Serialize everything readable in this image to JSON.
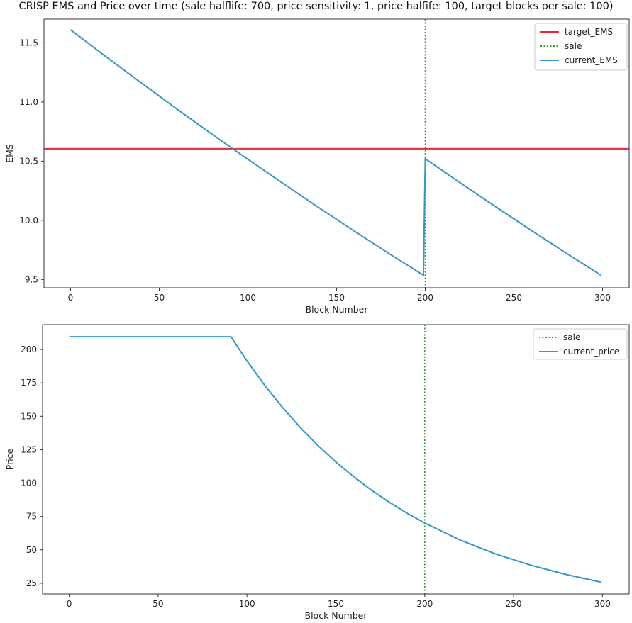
{
  "title": "CRISP EMS and Price over time (sale halflife: 700, price sensitivity: 1, price halfife: 100, target blocks per sale: 100)",
  "colors": {
    "target": "#e8283a",
    "sale": "#2ca02c",
    "current": "#3696c8"
  },
  "chart_data": [
    {
      "type": "line",
      "xlabel": "Block Number",
      "ylabel": "EMS",
      "xlim": [
        -15,
        315
      ],
      "ylim": [
        9.43,
        11.7
      ],
      "xticks": [
        0,
        50,
        100,
        150,
        200,
        250,
        300
      ],
      "yticks": [
        9.5,
        10.0,
        10.5,
        11.0,
        11.5
      ],
      "ytick_labels": [
        "9.5",
        "10.0",
        "10.5",
        "11.0",
        "11.5"
      ],
      "legend": "top-right",
      "series": [
        {
          "name": "target_EMS",
          "style": "solid",
          "color": "target",
          "hline": 10.605
        },
        {
          "name": "sale",
          "style": "dotted",
          "color": "sale",
          "vline": 200
        },
        {
          "name": "current_EMS",
          "style": "solid",
          "color": "current",
          "x": [
            0,
            20,
            40,
            60,
            80,
            100,
            120,
            140,
            160,
            180,
            199,
            200,
            220,
            240,
            260,
            280,
            299
          ],
          "y": [
            11.61,
            11.382,
            11.16,
            10.94,
            10.725,
            10.515,
            10.31,
            10.107,
            9.909,
            9.715,
            9.536,
            10.52,
            10.314,
            10.112,
            9.913,
            9.718,
            9.537
          ]
        }
      ]
    },
    {
      "type": "line",
      "xlabel": "Block Number",
      "ylabel": "Price",
      "xlim": [
        -15,
        315
      ],
      "ylim": [
        17,
        218.6
      ],
      "xticks": [
        0,
        50,
        100,
        150,
        200,
        250,
        300
      ],
      "yticks": [
        25,
        50,
        75,
        100,
        125,
        150,
        175,
        200
      ],
      "ytick_labels": [
        "25",
        "50",
        "75",
        "100",
        "125",
        "150",
        "175",
        "200"
      ],
      "legend": "top-right",
      "series": [
        {
          "name": "sale",
          "style": "dotted",
          "color": "sale",
          "vline": 200
        },
        {
          "name": "current_price",
          "style": "solid",
          "color": "current",
          "x": [
            0,
            91,
            100,
            110,
            120,
            130,
            140,
            150,
            160,
            170,
            180,
            190,
            200,
            220,
            240,
            260,
            280,
            299
          ],
          "y": [
            209.5,
            209.5,
            191.4,
            173.1,
            156.6,
            141.6,
            128.0,
            115.8,
            104.8,
            94.7,
            85.7,
            77.5,
            70.1,
            57.3,
            46.9,
            38.4,
            31.4,
            25.9
          ]
        }
      ]
    }
  ]
}
